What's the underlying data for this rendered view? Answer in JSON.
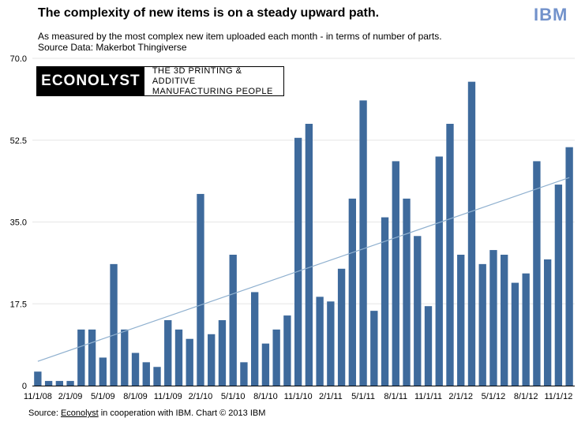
{
  "header": {
    "title": "The complexity of new items is on a steady upward path.",
    "subtitle": "As measured by the most complex new item uploaded each month - in terms of number of parts.",
    "source": "Source Data: Makerbot Thingiverse",
    "ibm_logo": "IBM"
  },
  "logo_box": {
    "brand": "ECONOLYST",
    "tagline_line1": "THE 3D PRINTING & ADDITIVE",
    "tagline_line2": "MANUFACTURING PEOPLE"
  },
  "footer": {
    "prefix": "Source: ",
    "brand": "Econolyst",
    "suffix": " in cooperation with IBM.  Chart © 2013 IBM"
  },
  "colors": {
    "bar": "#3e6a9c",
    "trend": "#8fb0cf",
    "grid": "#e6e6e6"
  },
  "chart_data": {
    "type": "bar",
    "title": "The complexity of new items is on a steady upward path.",
    "xlabel": "",
    "ylabel": "",
    "ylim": [
      0,
      70
    ],
    "ytick_labels": [
      "0",
      "17.5",
      "35.0",
      "52.5",
      "70.0"
    ],
    "yticks": [
      0,
      17.5,
      35,
      52.5,
      70
    ],
    "xtick_labels": [
      "11/1/08",
      "2/1/09",
      "5/1/09",
      "8/1/09",
      "11/1/09",
      "2/1/10",
      "5/1/10",
      "8/1/10",
      "11/1/10",
      "2/1/11",
      "5/1/11",
      "8/1/11",
      "11/1/11",
      "2/1/12",
      "5/1/12",
      "8/1/12",
      "11/1/12"
    ],
    "values": [
      3,
      1,
      1,
      1,
      12,
      12,
      6,
      26,
      12,
      7,
      5,
      4,
      14,
      12,
      10,
      41,
      11,
      14,
      28,
      5,
      20,
      9,
      12,
      15,
      53,
      56,
      19,
      18,
      25,
      40,
      61,
      16,
      36,
      48,
      40,
      32,
      17,
      49,
      56,
      28,
      65,
      26,
      29,
      28,
      22,
      24,
      48,
      27,
      43,
      51
    ],
    "trendline": {
      "start": 5.2,
      "end": 44.5
    },
    "legend": "none"
  }
}
